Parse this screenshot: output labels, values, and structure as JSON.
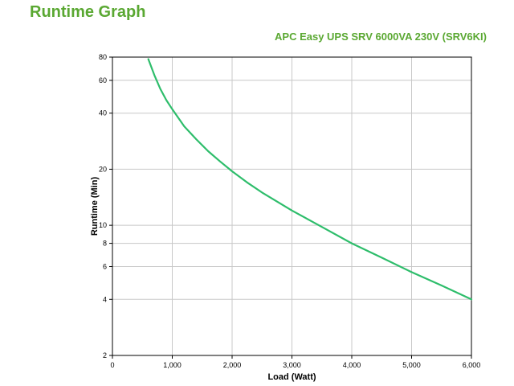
{
  "page": {
    "title": "Runtime Graph"
  },
  "chart_data": {
    "type": "line",
    "title": "APC Easy UPS SRV 6000VA 230V (SRV6KI)",
    "xlabel": "Load (Watt)",
    "ylabel": "Runtime (Min)",
    "xlim": [
      0,
      6000
    ],
    "ylim": [
      2,
      80
    ],
    "yscale": "log",
    "grid": true,
    "line_color": "#2ebd6b",
    "x_ticks": [
      0,
      1000,
      2000,
      3000,
      4000,
      5000,
      6000
    ],
    "x_tick_labels": [
      "0",
      "1,000",
      "2,000",
      "3,000",
      "4,000",
      "5,000",
      "6,000"
    ],
    "y_ticks": [
      2,
      4,
      6,
      8,
      10,
      20,
      40,
      60,
      80
    ],
    "y_tick_labels": [
      "2",
      "4",
      "6",
      "8",
      "10",
      "20",
      "40",
      "60",
      "80"
    ],
    "series": [
      {
        "x": [
          600,
          700,
          800,
          900,
          1000,
          1200,
          1400,
          1600,
          1800,
          2000,
          2250,
          2500,
          3000,
          3500,
          4000,
          4500,
          5000,
          5500,
          6000
        ],
        "values": [
          78,
          64,
          54,
          47,
          42,
          34,
          29,
          25,
          22,
          19.5,
          17,
          15,
          12,
          9.8,
          8,
          6.7,
          5.6,
          4.75,
          4
        ]
      }
    ]
  }
}
